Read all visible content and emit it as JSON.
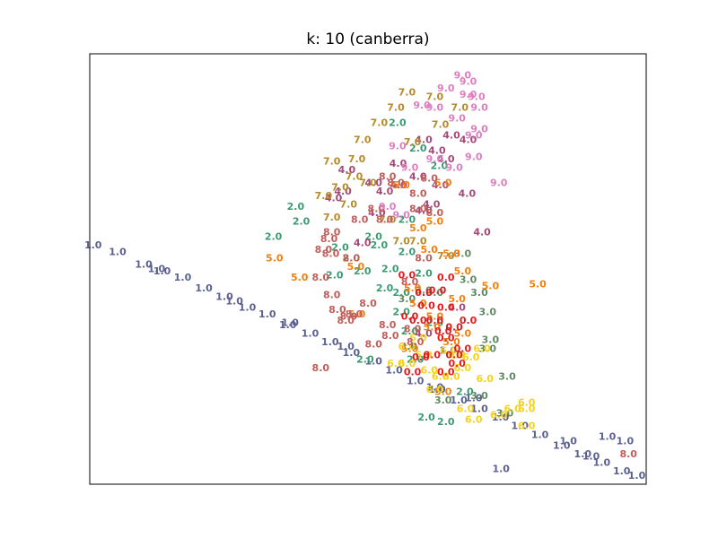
{
  "chart_data": {
    "type": "scatter",
    "title": "k: 10 (canberra)",
    "xlabel": "",
    "ylabel": "",
    "axes_ticks": "none",
    "grid": false,
    "legend": "none",
    "marker": "text label of cluster id",
    "palette": {
      "0.0": "#e41a1c",
      "1.0": "#5a6190",
      "2.0": "#3c9a72",
      "3.0": "#5f8a62",
      "4.0": "#a54a78",
      "5.0": "#f57f0a",
      "6.0": "#f5d31c",
      "7.0": "#b58a2a",
      "8.0": "#c25e5a",
      "9.0": "#dd7ec0"
    },
    "series": [
      {
        "label": "1.0",
        "points": [
          [
            0.6,
            4.1
          ],
          [
            5.0,
            3.8
          ],
          [
            9.7,
            3.2
          ],
          [
            13.0,
            2.9
          ],
          [
            16.7,
            2.6
          ],
          [
            20.5,
            2.1
          ],
          [
            24.2,
            1.7
          ],
          [
            28.3,
            1.2
          ],
          [
            31.9,
            0.9
          ],
          [
            35.6,
            0.4
          ],
          [
            39.6,
            0.0
          ],
          [
            43.2,
            -0.4
          ],
          [
            47.0,
            -0.9
          ],
          [
            51.0,
            -1.3
          ],
          [
            54.7,
            -1.7
          ],
          [
            58.5,
            -2.2
          ],
          [
            62.4,
            -2.6
          ],
          [
            66.3,
            -3.1
          ],
          [
            70.0,
            -3.5
          ],
          [
            73.8,
            -3.9
          ],
          [
            77.3,
            -4.3
          ],
          [
            80.9,
            -4.7
          ],
          [
            84.8,
            -5.2
          ],
          [
            88.6,
            -5.6
          ],
          [
            92.0,
            -6.0
          ],
          [
            95.6,
            -6.4
          ],
          [
            98.3,
            -6.6
          ],
          [
            64.4,
            -0.8
          ],
          [
            62.0,
            -2.5
          ],
          [
            69.0,
            -3.0
          ],
          [
            73.9,
            -6.3
          ],
          [
            86.0,
            -5.0
          ],
          [
            90.1,
            -5.7
          ],
          [
            93.0,
            -4.8
          ],
          [
            96.2,
            -5.0
          ],
          [
            12.0,
            3.0
          ],
          [
            26.0,
            1.5
          ],
          [
            36.0,
            0.5
          ],
          [
            46.0,
            -0.6
          ]
        ]
      },
      {
        "label": "2.0",
        "points": [
          [
            37.0,
            5.9
          ],
          [
            38.0,
            5.2
          ],
          [
            33.0,
            4.5
          ],
          [
            51.0,
            4.5
          ],
          [
            57.0,
            3.8
          ],
          [
            60.0,
            2.8
          ],
          [
            47.0,
            3.5
          ],
          [
            53.0,
            2.1
          ],
          [
            58.5,
            -1.2
          ],
          [
            64.0,
            -4.1
          ],
          [
            67.4,
            -2.7
          ],
          [
            62.0,
            0.5
          ],
          [
            57.0,
            5.3
          ],
          [
            55.3,
            9.8
          ],
          [
            59.0,
            8.6
          ],
          [
            62.8,
            7.8
          ],
          [
            44.0,
            2.7
          ],
          [
            45.0,
            4.0
          ],
          [
            49.0,
            2.9
          ],
          [
            52.0,
            4.1
          ],
          [
            54.0,
            3.0
          ],
          [
            56.0,
            1.9
          ],
          [
            60.5,
            -3.9
          ],
          [
            49.5,
            -1.2
          ],
          [
            57.5,
            0.1
          ],
          [
            56.0,
            1.0
          ]
        ]
      },
      {
        "label": "3.0",
        "points": [
          [
            57.0,
            1.6
          ],
          [
            62.0,
            1.9
          ],
          [
            67.0,
            3.7
          ],
          [
            70.0,
            1.9
          ],
          [
            71.5,
            1.0
          ],
          [
            72.0,
            -0.3
          ],
          [
            75.0,
            -2.0
          ],
          [
            71.5,
            -0.7
          ],
          [
            57.3,
            -0.6
          ],
          [
            63.5,
            -3.1
          ],
          [
            74.6,
            -3.7
          ],
          [
            70.0,
            -2.9
          ],
          [
            68.0,
            2.5
          ],
          [
            60.0,
            2.0
          ]
        ]
      },
      {
        "label": "4.0",
        "points": [
          [
            46.2,
            7.6
          ],
          [
            43.8,
            6.3
          ],
          [
            51.0,
            7.0
          ],
          [
            53.0,
            6.6
          ],
          [
            51.6,
            5.6
          ],
          [
            55.5,
            6.9
          ],
          [
            61.4,
            6.0
          ],
          [
            62.4,
            8.5
          ],
          [
            64.0,
            8.1
          ],
          [
            67.8,
            6.5
          ],
          [
            70.5,
            4.7
          ],
          [
            59.0,
            7.3
          ],
          [
            63.0,
            6.9
          ],
          [
            65.0,
            9.2
          ],
          [
            55.4,
            7.9
          ],
          [
            60.0,
            9.0
          ],
          [
            68.0,
            9.0
          ],
          [
            60.0,
            5.7
          ],
          [
            49.0,
            4.2
          ],
          [
            66.0,
            1.2
          ],
          [
            60.0,
            0.0
          ],
          [
            45.5,
            6.6
          ]
        ]
      },
      {
        "label": "5.0",
        "points": [
          [
            33.2,
            3.5
          ],
          [
            37.7,
            2.6
          ],
          [
            48.0,
            0.9
          ],
          [
            56.0,
            6.9
          ],
          [
            59.0,
            4.9
          ],
          [
            61.0,
            3.9
          ],
          [
            62.0,
            5.2
          ],
          [
            65.0,
            3.7
          ],
          [
            67.0,
            2.9
          ],
          [
            72.0,
            2.2
          ],
          [
            80.5,
            2.3
          ],
          [
            66.0,
            1.6
          ],
          [
            62.0,
            0.8
          ],
          [
            58.0,
            2.1
          ],
          [
            65.0,
            -0.4
          ],
          [
            67.0,
            0.0
          ],
          [
            63.5,
            -2.7
          ],
          [
            59.0,
            1.4
          ],
          [
            63.5,
            7.0
          ],
          [
            47.8,
            3.1
          ],
          [
            61.5,
            0.3
          ],
          [
            57.5,
            -0.7
          ]
        ]
      },
      {
        "label": "6.0",
        "points": [
          [
            55.0,
            -1.4
          ],
          [
            57.0,
            -1.4
          ],
          [
            61.0,
            -1.7
          ],
          [
            63.0,
            -2.0
          ],
          [
            65.0,
            -2.0
          ],
          [
            67.0,
            -1.6
          ],
          [
            68.5,
            -1.1
          ],
          [
            70.5,
            -0.7
          ],
          [
            67.5,
            -3.5
          ],
          [
            73.5,
            -3.8
          ],
          [
            76.0,
            -3.5
          ],
          [
            78.5,
            -3.2
          ],
          [
            78.5,
            -3.5
          ],
          [
            78.5,
            -4.3
          ],
          [
            69.0,
            -4.0
          ],
          [
            62.0,
            -2.6
          ],
          [
            59.0,
            -0.2
          ],
          [
            66.0,
            -1.0
          ],
          [
            60.0,
            -1.0
          ],
          [
            71.0,
            -2.1
          ],
          [
            57.0,
            -0.6
          ],
          [
            64.5,
            -0.8
          ]
        ]
      },
      {
        "label": "7.0",
        "points": [
          [
            49.0,
            9.0
          ],
          [
            52.0,
            9.8
          ],
          [
            57.0,
            11.2
          ],
          [
            62.0,
            11.0
          ],
          [
            55.0,
            10.5
          ],
          [
            43.5,
            8.0
          ],
          [
            47.5,
            7.3
          ],
          [
            45.0,
            6.8
          ],
          [
            43.5,
            5.4
          ],
          [
            46.5,
            6.0
          ],
          [
            53.5,
            5.3
          ],
          [
            59.0,
            4.3
          ],
          [
            56.0,
            4.3
          ],
          [
            64.0,
            3.6
          ],
          [
            58.0,
            8.9
          ],
          [
            63.0,
            9.7
          ],
          [
            66.5,
            10.5
          ],
          [
            50.0,
            7.0
          ],
          [
            42.0,
            6.4
          ],
          [
            48.0,
            8.1
          ]
        ]
      },
      {
        "label": "8.0",
        "points": [
          [
            48.5,
            5.3
          ],
          [
            51.5,
            5.8
          ],
          [
            53.5,
            7.3
          ],
          [
            55.0,
            7.0
          ],
          [
            59.0,
            6.5
          ],
          [
            61.0,
            7.2
          ],
          [
            43.5,
            4.7
          ],
          [
            42.0,
            3.9
          ],
          [
            41.5,
            2.6
          ],
          [
            43.5,
            1.8
          ],
          [
            47.5,
            0.9
          ],
          [
            51.0,
            -0.5
          ],
          [
            54.0,
            -0.1
          ],
          [
            58.5,
            -0.4
          ],
          [
            53.5,
            0.4
          ],
          [
            50.0,
            1.4
          ],
          [
            46.5,
            0.8
          ],
          [
            57.5,
            2.4
          ],
          [
            62.0,
            5.6
          ],
          [
            43.0,
            4.4
          ],
          [
            47.0,
            3.5
          ],
          [
            59.0,
            5.8
          ],
          [
            43.3,
            3.7
          ],
          [
            44.5,
            1.1
          ],
          [
            58.0,
            0.2
          ],
          [
            60.0,
            3.5
          ],
          [
            46.0,
            0.6
          ],
          [
            41.5,
            -1.6
          ],
          [
            96.8,
            -5.6
          ],
          [
            53.0,
            5.3
          ]
        ]
      },
      {
        "label": "9.0",
        "points": [
          [
            64.0,
            11.4
          ],
          [
            68.0,
            11.1
          ],
          [
            70.0,
            10.5
          ],
          [
            66.0,
            10.0
          ],
          [
            69.0,
            9.2
          ],
          [
            69.0,
            8.2
          ],
          [
            73.5,
            7.0
          ],
          [
            65.5,
            7.7
          ],
          [
            62.0,
            8.1
          ],
          [
            57.5,
            7.7
          ],
          [
            55.3,
            8.7
          ],
          [
            53.5,
            5.9
          ],
          [
            56.0,
            5.5
          ],
          [
            59.7,
            10.6
          ],
          [
            62.0,
            10.5
          ],
          [
            67.0,
            12.0
          ],
          [
            68.0,
            11.7
          ],
          [
            69.5,
            11.0
          ],
          [
            70.0,
            9.5
          ]
        ]
      },
      {
        "label": "0.0",
        "points": [
          [
            57.0,
            2.7
          ],
          [
            60.0,
            1.9
          ],
          [
            62.5,
            2.0
          ],
          [
            64.0,
            1.2
          ],
          [
            63.5,
            0.1
          ],
          [
            64.0,
            -0.2
          ],
          [
            65.5,
            0.3
          ],
          [
            59.0,
            0.6
          ],
          [
            59.5,
            -1.1
          ],
          [
            64.0,
            -1.8
          ],
          [
            65.5,
            -1.0
          ],
          [
            61.5,
            -1.0
          ],
          [
            67.0,
            -0.7
          ],
          [
            68.0,
            0.6
          ],
          [
            57.5,
            0.8
          ],
          [
            58.0,
            -1.8
          ],
          [
            66.0,
            -1.4
          ],
          [
            62.0,
            0.6
          ],
          [
            60.5,
            1.3
          ],
          [
            64.0,
            2.6
          ]
        ]
      }
    ]
  }
}
